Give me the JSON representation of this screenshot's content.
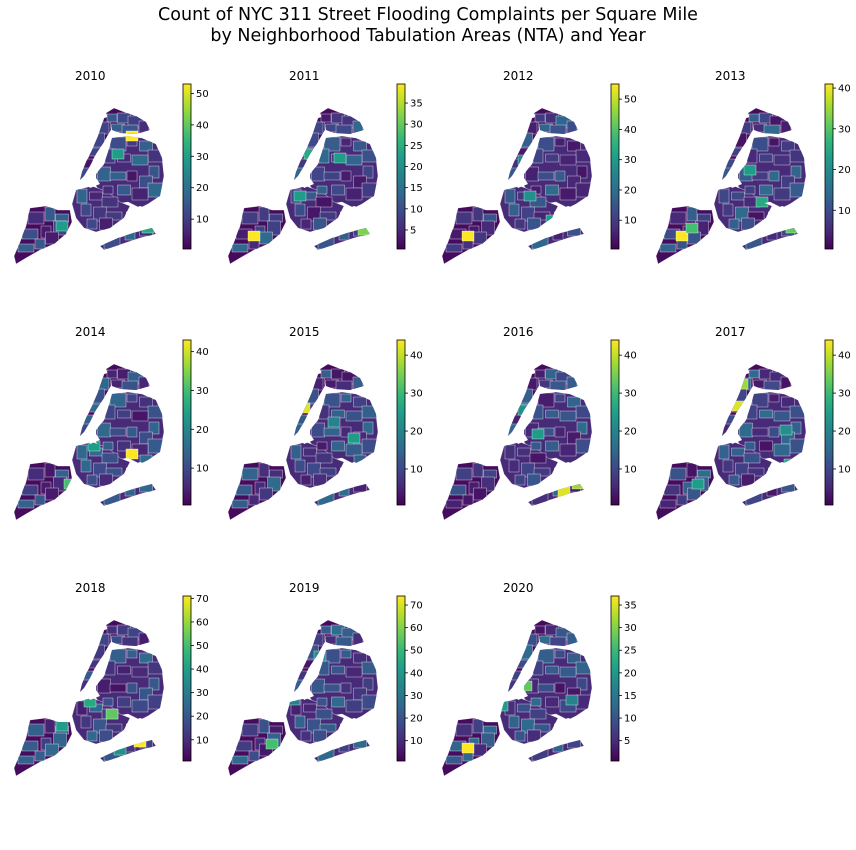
{
  "title": {
    "line1": "Count of NYC 311 Street Flooding Complaints per Square Mile",
    "line2": "by Neighborhood Tabulation Areas (NTA) and Year"
  },
  "colormap": {
    "name": "viridis",
    "stops": [
      "#440154",
      "#482878",
      "#3e4989",
      "#31688e",
      "#26828e",
      "#1f9e89",
      "#35b779",
      "#6ece58",
      "#b5de2b",
      "#fde725"
    ]
  },
  "chart_data": [
    {
      "type": "heatmap",
      "title": "2010",
      "cmap": "viridis",
      "colorbar": {
        "ticks": [
          10,
          20,
          30,
          40,
          50
        ],
        "vmin": 0.5,
        "vmax": 53
      }
    },
    {
      "type": "heatmap",
      "title": "2011",
      "cmap": "viridis",
      "colorbar": {
        "ticks": [
          5,
          10,
          15,
          20,
          25,
          30,
          35
        ],
        "vmin": 0.5,
        "vmax": 39.5
      }
    },
    {
      "type": "heatmap",
      "title": "2012",
      "cmap": "viridis",
      "colorbar": {
        "ticks": [
          10,
          20,
          30,
          40,
          50
        ],
        "vmin": 0.5,
        "vmax": 55
      }
    },
    {
      "type": "heatmap",
      "title": "2013",
      "cmap": "viridis",
      "colorbar": {
        "ticks": [
          10,
          20,
          30,
          40
        ],
        "vmin": 0.5,
        "vmax": 41
      }
    },
    {
      "type": "heatmap",
      "title": "2014",
      "cmap": "viridis",
      "colorbar": {
        "ticks": [
          10,
          20,
          30,
          40
        ],
        "vmin": 0.5,
        "vmax": 43
      }
    },
    {
      "type": "heatmap",
      "title": "2015",
      "cmap": "viridis",
      "colorbar": {
        "ticks": [
          10,
          20,
          30,
          40
        ],
        "vmin": 0.5,
        "vmax": 44
      }
    },
    {
      "type": "heatmap",
      "title": "2016",
      "cmap": "viridis",
      "colorbar": {
        "ticks": [
          10,
          20,
          30,
          40
        ],
        "vmin": 0.5,
        "vmax": 44
      }
    },
    {
      "type": "heatmap",
      "title": "2017",
      "cmap": "viridis",
      "colorbar": {
        "ticks": [
          10,
          20,
          30,
          40
        ],
        "vmin": 0.5,
        "vmax": 44
      }
    },
    {
      "type": "heatmap",
      "title": "2018",
      "cmap": "viridis",
      "colorbar": {
        "ticks": [
          10,
          20,
          30,
          40,
          50,
          60,
          70
        ],
        "vmin": 1,
        "vmax": 71
      }
    },
    {
      "type": "heatmap",
      "title": "2019",
      "cmap": "viridis",
      "colorbar": {
        "ticks": [
          10,
          20,
          30,
          40,
          50,
          60,
          70
        ],
        "vmin": 1,
        "vmax": 74
      }
    },
    {
      "type": "heatmap",
      "title": "2020",
      "cmap": "viridis",
      "colorbar": {
        "ticks": [
          5,
          10,
          15,
          20,
          25,
          30,
          35
        ],
        "vmin": 0.5,
        "vmax": 37
      }
    }
  ]
}
